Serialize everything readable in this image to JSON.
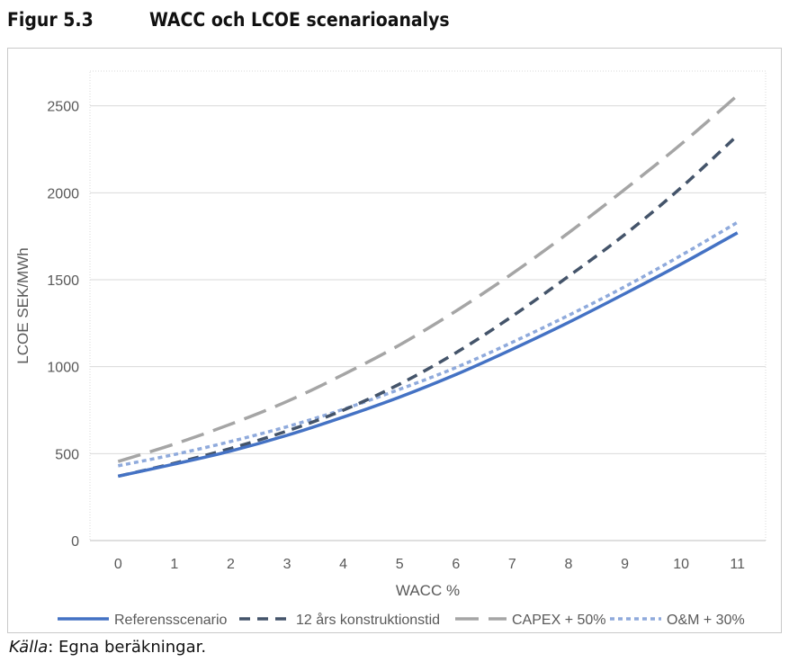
{
  "figure": {
    "number": "Figur 5.3",
    "title": "WACC och LCOE scenarioanalys"
  },
  "source": {
    "label": "Källa",
    "text": ": Egna beräkningar."
  },
  "chart_data": {
    "type": "line",
    "title": "WACC och LCOE scenarioanalys",
    "xlabel": "WACC %",
    "ylabel": "LCOE SEK/MWh",
    "x": [
      0,
      1,
      2,
      3,
      4,
      5,
      6,
      7,
      8,
      9,
      10,
      11
    ],
    "ylim": [
      0,
      2500
    ],
    "yticks": [
      0,
      500,
      1000,
      1500,
      2000,
      2500
    ],
    "grid": true,
    "legend_position": "bottom",
    "series": [
      {
        "name": "Referensscenario",
        "color": "#4472c4",
        "dash": "solid",
        "values": [
          370,
          440,
          515,
          605,
          710,
          825,
          955,
          1100,
          1255,
          1420,
          1590,
          1770
        ]
      },
      {
        "name": "12 års konstruktionstid",
        "color": "#44546a",
        "dash": "dash",
        "values": [
          370,
          445,
          530,
          630,
          750,
          900,
          1080,
          1290,
          1520,
          1760,
          2030,
          2330
        ]
      },
      {
        "name": "CAPEX + 50%",
        "color": "#a5a5a5",
        "dash": "longdash",
        "values": [
          455,
          555,
          670,
          800,
          955,
          1125,
          1320,
          1535,
          1770,
          2020,
          2280,
          2560
        ]
      },
      {
        "name": "O&M + 30%",
        "color": "#8faadc",
        "dash": "shortdash",
        "values": [
          430,
          495,
          570,
          655,
          755,
          870,
          995,
          1140,
          1295,
          1460,
          1640,
          1830
        ]
      }
    ]
  }
}
